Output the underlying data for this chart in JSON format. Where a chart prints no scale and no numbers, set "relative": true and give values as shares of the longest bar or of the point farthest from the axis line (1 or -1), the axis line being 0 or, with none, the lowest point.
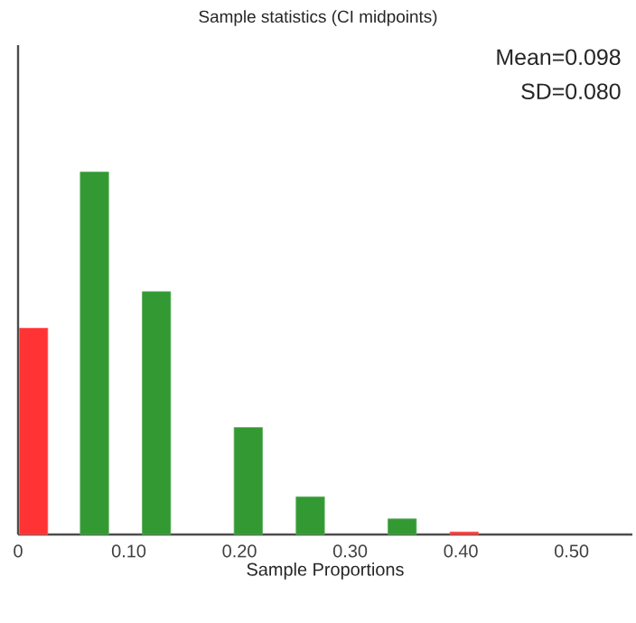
{
  "chart_data": {
    "type": "bar",
    "title": "Sample statistics (CI midpoints)",
    "xlabel": "Sample Proportions",
    "x": [
      0.014,
      0.069,
      0.125,
      0.208,
      0.264,
      0.347,
      0.403
    ],
    "values": [
      0.569,
      1,
      0.67,
      0.295,
      0.104,
      0.043,
      0.007
    ],
    "colors": [
      "#ff3333",
      "#339933",
      "#339933",
      "#339933",
      "#339933",
      "#339933",
      "#ff3333"
    ],
    "relative": true,
    "xlim": [
      0,
      0.555
    ],
    "xticks": [
      0,
      {
        "value": 0.1,
        "label": "0.10"
      },
      {
        "value": 0.2,
        "label": "0.20"
      },
      {
        "value": 0.3,
        "label": "0.30"
      },
      {
        "value": 0.4,
        "label": "0.40"
      },
      {
        "value": 0.5,
        "label": "0.50"
      }
    ],
    "tick_labels": "x",
    "annotations": [
      "Mean=0.098",
      "SD=0.080"
    ]
  }
}
